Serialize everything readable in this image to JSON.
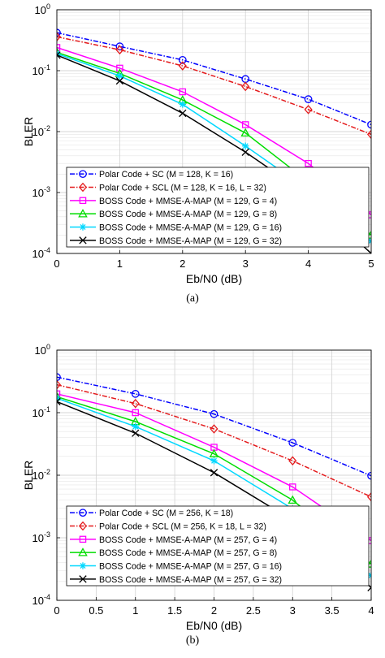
{
  "figure": {
    "caption_a": "(a)",
    "caption_b": "(b)"
  },
  "chart_data": [
    {
      "type": "line",
      "xlabel": "Eb/N0 (dB)",
      "ylabel": "BLER",
      "yscale": "log",
      "xlim": [
        0,
        5
      ],
      "ylim": [
        0.0001,
        1
      ],
      "xticks": [
        "0",
        "1",
        "2",
        "3",
        "4",
        "5"
      ],
      "grid": true,
      "legend_position": "bottom-left",
      "x": [
        0,
        1,
        2,
        3,
        4,
        5
      ],
      "series": [
        {
          "name": "Polar Code + SC (M = 128, K = 16)",
          "color": "#0000ff",
          "dash": "dashdot",
          "marker": "circle",
          "values": [
            0.42,
            0.25,
            0.15,
            0.073,
            0.034,
            0.013
          ]
        },
        {
          "name": "Polar Code + SCL (M = 128, K = 16, L = 32)",
          "color": "#e41a1c",
          "dash": "dashdot",
          "marker": "diamond",
          "values": [
            0.36,
            0.22,
            0.12,
            0.055,
            0.023,
            0.009
          ]
        },
        {
          "name": "BOSS Code + MMSE-A-MAP (M = 129, G = 4)",
          "color": "#ff00ff",
          "dash": "solid",
          "marker": "square",
          "values": [
            0.24,
            0.11,
            0.045,
            0.013,
            0.003,
            0.00043
          ]
        },
        {
          "name": "BOSS Code + MMSE-A-MAP (M = 129, G = 8)",
          "color": "#00dd00",
          "dash": "solid",
          "marker": "triangle",
          "values": [
            0.2,
            0.09,
            0.033,
            0.0095,
            0.0015,
            0.0002
          ]
        },
        {
          "name": "BOSS Code + MMSE-A-MAP (M = 129, G = 16)",
          "color": "#00d8ff",
          "dash": "solid",
          "marker": "star",
          "values": [
            0.19,
            0.082,
            0.028,
            0.0058,
            0.0011,
            0.00016
          ]
        },
        {
          "name": "BOSS Code + MMSE-A-MAP (M = 129, G = 32)",
          "color": "#000000",
          "dash": "solid",
          "marker": "x",
          "values": [
            0.18,
            0.068,
            0.02,
            0.0046,
            0.0009,
            0.0001
          ]
        }
      ]
    },
    {
      "type": "line",
      "xlabel": "Eb/N0 (dB)",
      "ylabel": "BLER",
      "yscale": "log",
      "xlim": [
        0,
        4
      ],
      "ylim": [
        0.0001,
        1
      ],
      "xticks": [
        "0",
        "0.5",
        "1",
        "1.5",
        "2",
        "2.5",
        "3",
        "3.5",
        "4"
      ],
      "grid": true,
      "legend_position": "bottom-left",
      "x": [
        0,
        1,
        2,
        3,
        4
      ],
      "series": [
        {
          "name": "Polar Code + SC (M = 256, K = 18)",
          "color": "#0000ff",
          "dash": "dashdot",
          "marker": "circle",
          "values": [
            0.37,
            0.2,
            0.095,
            0.033,
            0.0098
          ]
        },
        {
          "name": "Polar Code + SCL (M = 256, K = 18, L = 32)",
          "color": "#e41a1c",
          "dash": "dashdot",
          "marker": "diamond",
          "values": [
            0.28,
            0.14,
            0.055,
            0.017,
            0.0045
          ]
        },
        {
          "name": "BOSS Code + MMSE-A-MAP (M = 257, G = 4)",
          "color": "#ff00ff",
          "dash": "solid",
          "marker": "square",
          "values": [
            0.2,
            0.1,
            0.028,
            0.0065,
            0.0009
          ]
        },
        {
          "name": "BOSS Code + MMSE-A-MAP (M = 257, G = 8)",
          "color": "#00dd00",
          "dash": "solid",
          "marker": "triangle",
          "values": [
            0.18,
            0.072,
            0.022,
            0.004,
            0.00038
          ]
        },
        {
          "name": "BOSS Code + MMSE-A-MAP (M = 257, G = 16)",
          "color": "#00d8ff",
          "dash": "solid",
          "marker": "star",
          "values": [
            0.17,
            0.06,
            0.017,
            0.0029,
            0.00025
          ]
        },
        {
          "name": "BOSS Code + MMSE-A-MAP (M = 257, G = 32)",
          "color": "#000000",
          "dash": "solid",
          "marker": "x",
          "values": [
            0.15,
            0.047,
            0.011,
            0.0019,
            0.00016
          ]
        }
      ]
    }
  ]
}
